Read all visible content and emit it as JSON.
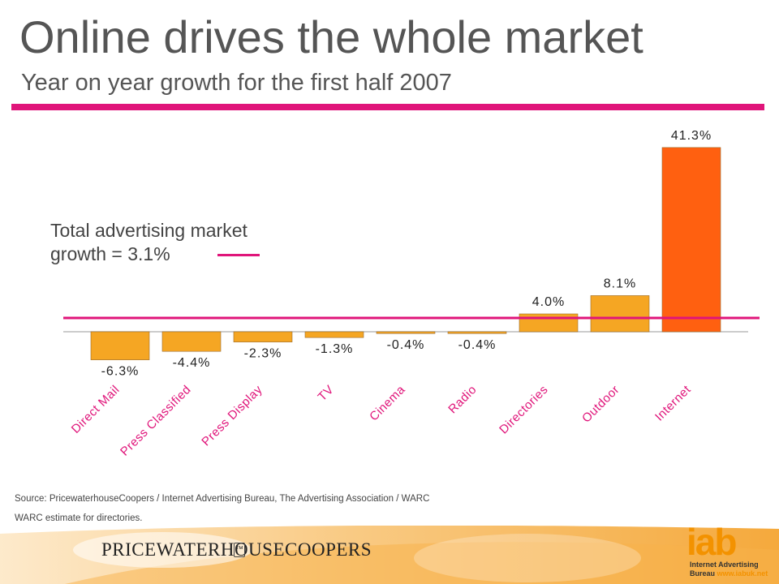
{
  "slide": {
    "title": "Online drives the whole market",
    "subtitle": "Year on year growth for the first half 2007",
    "total_line1": "Total advertising market",
    "total_line2": "growth  = 3.1%",
    "source": "Source: PricewaterhouseCoopers / Internet  Advertising Bureau, The  Advertising Association / WARC",
    "note": "WARC estimate for directories.",
    "pwc_logo_text": "PRICEWATERHOUSECOOPERS",
    "pwc_mark": "™",
    "iab_word": "iab",
    "iab_line1": "Internet Advertising",
    "iab_line2_a": "Bureau ",
    "iab_line2_b": "www.iabuk.net"
  },
  "chart_data": {
    "type": "bar",
    "title": "Year on year growth for the first half 2007",
    "categories": [
      "Direct Mail",
      "Press Classified",
      "Press Display",
      "TV",
      "Cinema",
      "Radio",
      "Directories",
      "Outdoor",
      "Internet"
    ],
    "values": [
      -6.3,
      -4.4,
      -2.3,
      -1.3,
      -0.4,
      -0.4,
      4.0,
      8.1,
      41.3
    ],
    "value_labels": [
      "-6.3%",
      "-4.4%",
      "-2.3%",
      "-1.3%",
      "-0.4%",
      "-0.4%",
      "4.0%",
      "8.1%",
      "41.3%"
    ],
    "reference_line": {
      "value": 3.1,
      "label": "Total advertising market growth  = 3.1%",
      "color": "#e0157a"
    },
    "bar_color": "#f5a623",
    "highlight_color": "#ff6010",
    "highlight_category": "Internet",
    "ylim": [
      -7,
      42
    ],
    "grid": false,
    "legend": "none"
  }
}
